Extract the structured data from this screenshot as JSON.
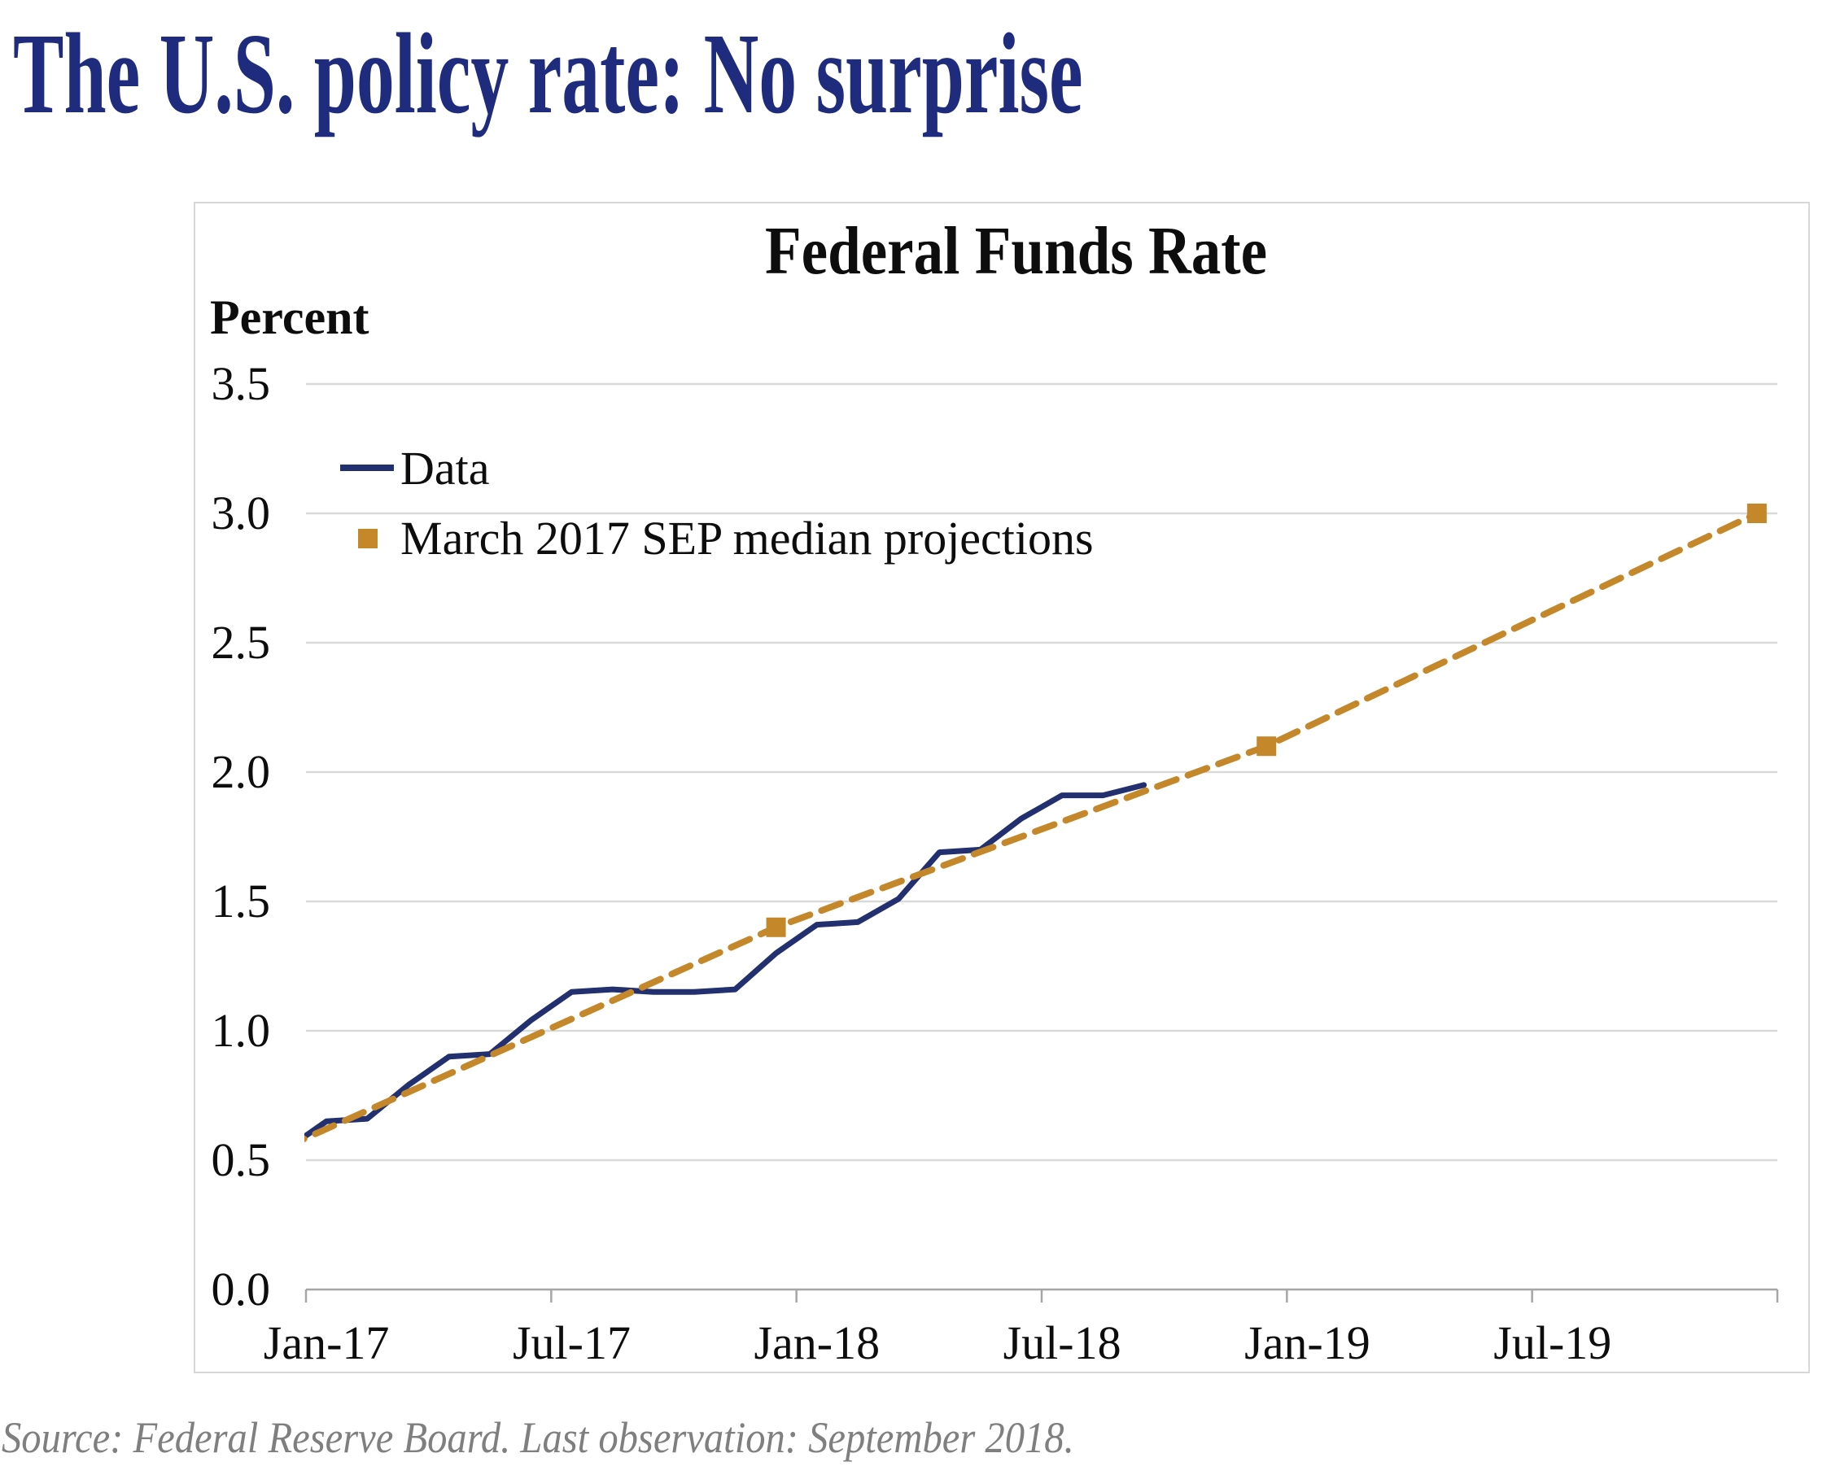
{
  "page": {
    "title": "The U.S. policy rate: No surprise",
    "source_note": "Source: Federal Reserve Board. Last observation: September 2018."
  },
  "colors": {
    "page_title": "#1f2c7e",
    "data_line": "#22306f",
    "projection_line": "#c4872a",
    "gridline": "#d9d9d9",
    "axis_line": "#a6a6a6",
    "chart_border": "#d8d8d8",
    "text": "#0d0d0d",
    "source_text": "#7f7f7f"
  },
  "chart_data": {
    "type": "line",
    "title": "Federal Funds Rate",
    "ylabel": "Percent",
    "xlabel": "",
    "ylim": [
      0.0,
      3.5
    ],
    "grid": true,
    "legend_position": "top-left-inside",
    "y_ticks": [
      {
        "label": "3.5",
        "value": 3.5
      },
      {
        "label": "3.0",
        "value": 3.0
      },
      {
        "label": "2.5",
        "value": 2.5
      },
      {
        "label": "2.0",
        "value": 2.0
      },
      {
        "label": "1.5",
        "value": 1.5
      },
      {
        "label": "1.0",
        "value": 1.0
      },
      {
        "label": "0.5",
        "value": 0.5
      },
      {
        "label": "0.0",
        "value": 0.0
      }
    ],
    "x_ticks": [
      {
        "label": "Jan-17",
        "date": "2017-01"
      },
      {
        "label": "Jul-17",
        "date": "2017-07"
      },
      {
        "label": "Jan-18",
        "date": "2018-01"
      },
      {
        "label": "Jul-18",
        "date": "2018-07"
      },
      {
        "label": "Jan-19",
        "date": "2019-01"
      },
      {
        "label": "Jul-19",
        "date": "2019-07"
      }
    ],
    "series": [
      {
        "name": "Data",
        "style": "solid",
        "color": "#22306f",
        "points": [
          {
            "date": "2016-12",
            "value": 0.54
          },
          {
            "date": "2017-01",
            "value": 0.65
          },
          {
            "date": "2017-02",
            "value": 0.66
          },
          {
            "date": "2017-03",
            "value": 0.79
          },
          {
            "date": "2017-04",
            "value": 0.9
          },
          {
            "date": "2017-05",
            "value": 0.91
          },
          {
            "date": "2017-06",
            "value": 1.04
          },
          {
            "date": "2017-07",
            "value": 1.15
          },
          {
            "date": "2017-08",
            "value": 1.16
          },
          {
            "date": "2017-09",
            "value": 1.15
          },
          {
            "date": "2017-10",
            "value": 1.15
          },
          {
            "date": "2017-11",
            "value": 1.16
          },
          {
            "date": "2017-12",
            "value": 1.3
          },
          {
            "date": "2018-01",
            "value": 1.41
          },
          {
            "date": "2018-02",
            "value": 1.42
          },
          {
            "date": "2018-03",
            "value": 1.51
          },
          {
            "date": "2018-04",
            "value": 1.69
          },
          {
            "date": "2018-05",
            "value": 1.7
          },
          {
            "date": "2018-06",
            "value": 1.82
          },
          {
            "date": "2018-07",
            "value": 1.91
          },
          {
            "date": "2018-08",
            "value": 1.91
          },
          {
            "date": "2018-09",
            "value": 1.95
          }
        ]
      },
      {
        "name": "March 2017 SEP median projections",
        "style": "dashed",
        "marker": "square",
        "color": "#c4872a",
        "points": [
          {
            "date": "2016-12",
            "value": 0.55,
            "marker": false
          },
          {
            "date": "2017-12",
            "value": 1.4,
            "marker": true
          },
          {
            "date": "2018-12",
            "value": 2.1,
            "marker": true
          },
          {
            "date": "2019-12",
            "value": 3.0,
            "marker": true
          }
        ]
      }
    ]
  }
}
